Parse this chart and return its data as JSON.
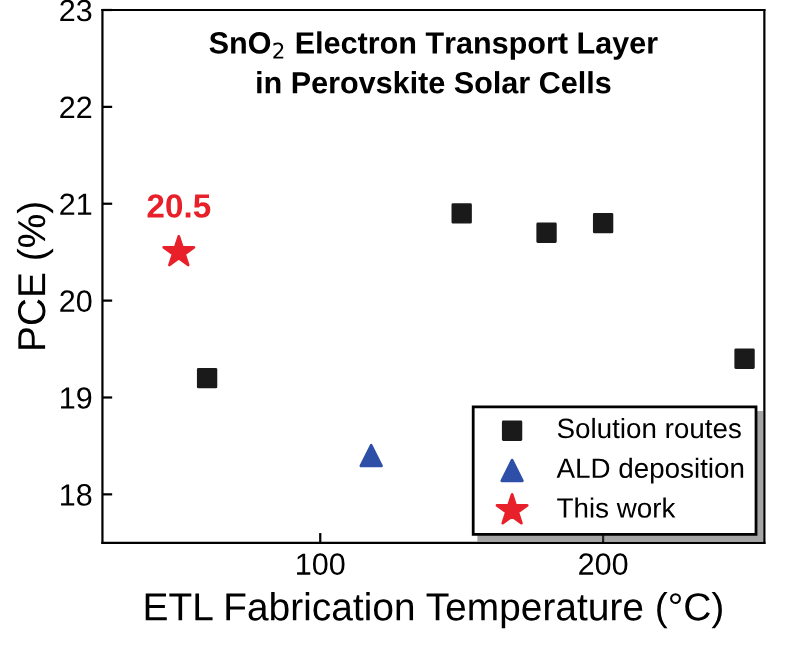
{
  "chart_data": {
    "type": "scatter",
    "title": "SnO$_{2}$ Electron Transport Layer\nin Perovskite Solar Cells",
    "xlabel": "ETL Fabrication Temperature (°C)",
    "ylabel": "PCE (%)",
    "series": [
      {
        "name": "Solution routes",
        "color": "#1a1a1a",
        "marker": "square",
        "x": [
          60,
          150,
          180,
          200,
          250
        ],
        "values": [
          19.2,
          20.9,
          20.7,
          20.8,
          19.4
        ]
      },
      {
        "name": "ALD deposition",
        "color": "#2e4fa8",
        "marker": "triangle",
        "x": [
          118
        ],
        "values": [
          18.4
        ]
      },
      {
        "name": "This work",
        "color": "#e8202a",
        "marker": "star",
        "x": [
          50
        ],
        "values": [
          20.5
        ]
      }
    ],
    "annotations": [
      {
        "text": "20.5",
        "x": 50,
        "y": 20.5
      }
    ],
    "xlim": [
      23,
      257
    ],
    "xticks": [
      100,
      200
    ],
    "ylim": [
      17.5,
      23
    ],
    "yticks": [
      18,
      19,
      20,
      21,
      22,
      23
    ],
    "grid": false,
    "legend": "bottom right"
  }
}
